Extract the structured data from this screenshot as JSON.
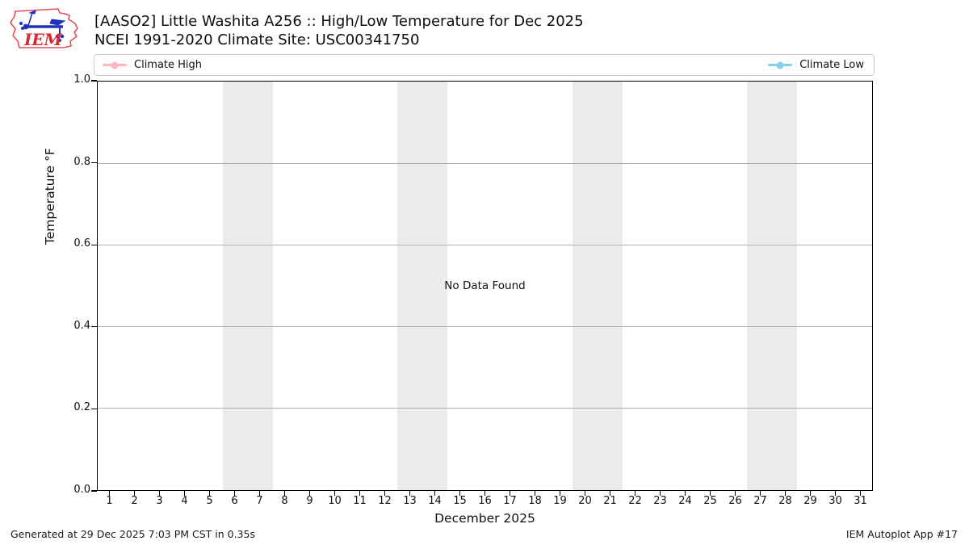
{
  "header": {
    "title": "[AASO2] Little Washita A256 :: High/Low Temperature for Dec 2025",
    "subtitle": "NCEI 1991-2020 Climate Site: USC00341750",
    "logo_text": "IEM"
  },
  "legend": {
    "high": {
      "label": "Climate High",
      "color": "#ffb6c1"
    },
    "low": {
      "label": "Climate Low",
      "color": "#87ceeb"
    }
  },
  "chart_data": {
    "type": "line",
    "title": "[AASO2] Little Washita A256 :: High/Low Temperature for Dec 2025",
    "subtitle": "NCEI 1991-2020 Climate Site: USC00341750",
    "xlabel": "December 2025",
    "ylabel": "Temperature °F",
    "no_data_text": "No Data Found",
    "x_ticks": [
      "1",
      "2",
      "3",
      "4",
      "5",
      "6",
      "7",
      "8",
      "9",
      "10",
      "11",
      "12",
      "13",
      "14",
      "15",
      "16",
      "17",
      "18",
      "19",
      "20",
      "21",
      "22",
      "23",
      "24",
      "25",
      "26",
      "27",
      "28",
      "29",
      "30",
      "31"
    ],
    "x_days_total": 31,
    "y_ticks": [
      {
        "v": 0.0,
        "label": "0.0"
      },
      {
        "v": 0.2,
        "label": "0.2"
      },
      {
        "v": 0.4,
        "label": "0.4"
      },
      {
        "v": 0.6,
        "label": "0.6"
      },
      {
        "v": 0.8,
        "label": "0.8"
      },
      {
        "v": 1.0,
        "label": "1.0"
      }
    ],
    "ylim": [
      0.0,
      1.0
    ],
    "grid": "horizontal",
    "grid_color": "#b0b0b0",
    "legend_position": "top, spanning plot width, entries at left and right",
    "weekend_bands_days": [
      [
        6,
        7
      ],
      [
        13,
        14
      ],
      [
        20,
        21
      ],
      [
        27,
        28
      ]
    ],
    "band_color": "#ebebeb",
    "series": [
      {
        "name": "Climate High",
        "color": "#ffb6c1",
        "x": [],
        "values": []
      },
      {
        "name": "Climate Low",
        "color": "#87ceeb",
        "x": [],
        "values": []
      }
    ]
  },
  "footer": {
    "generated": "Generated at 29 Dec 2025 7:03 PM CST in 0.35s",
    "app": "IEM Autoplot App #17"
  }
}
